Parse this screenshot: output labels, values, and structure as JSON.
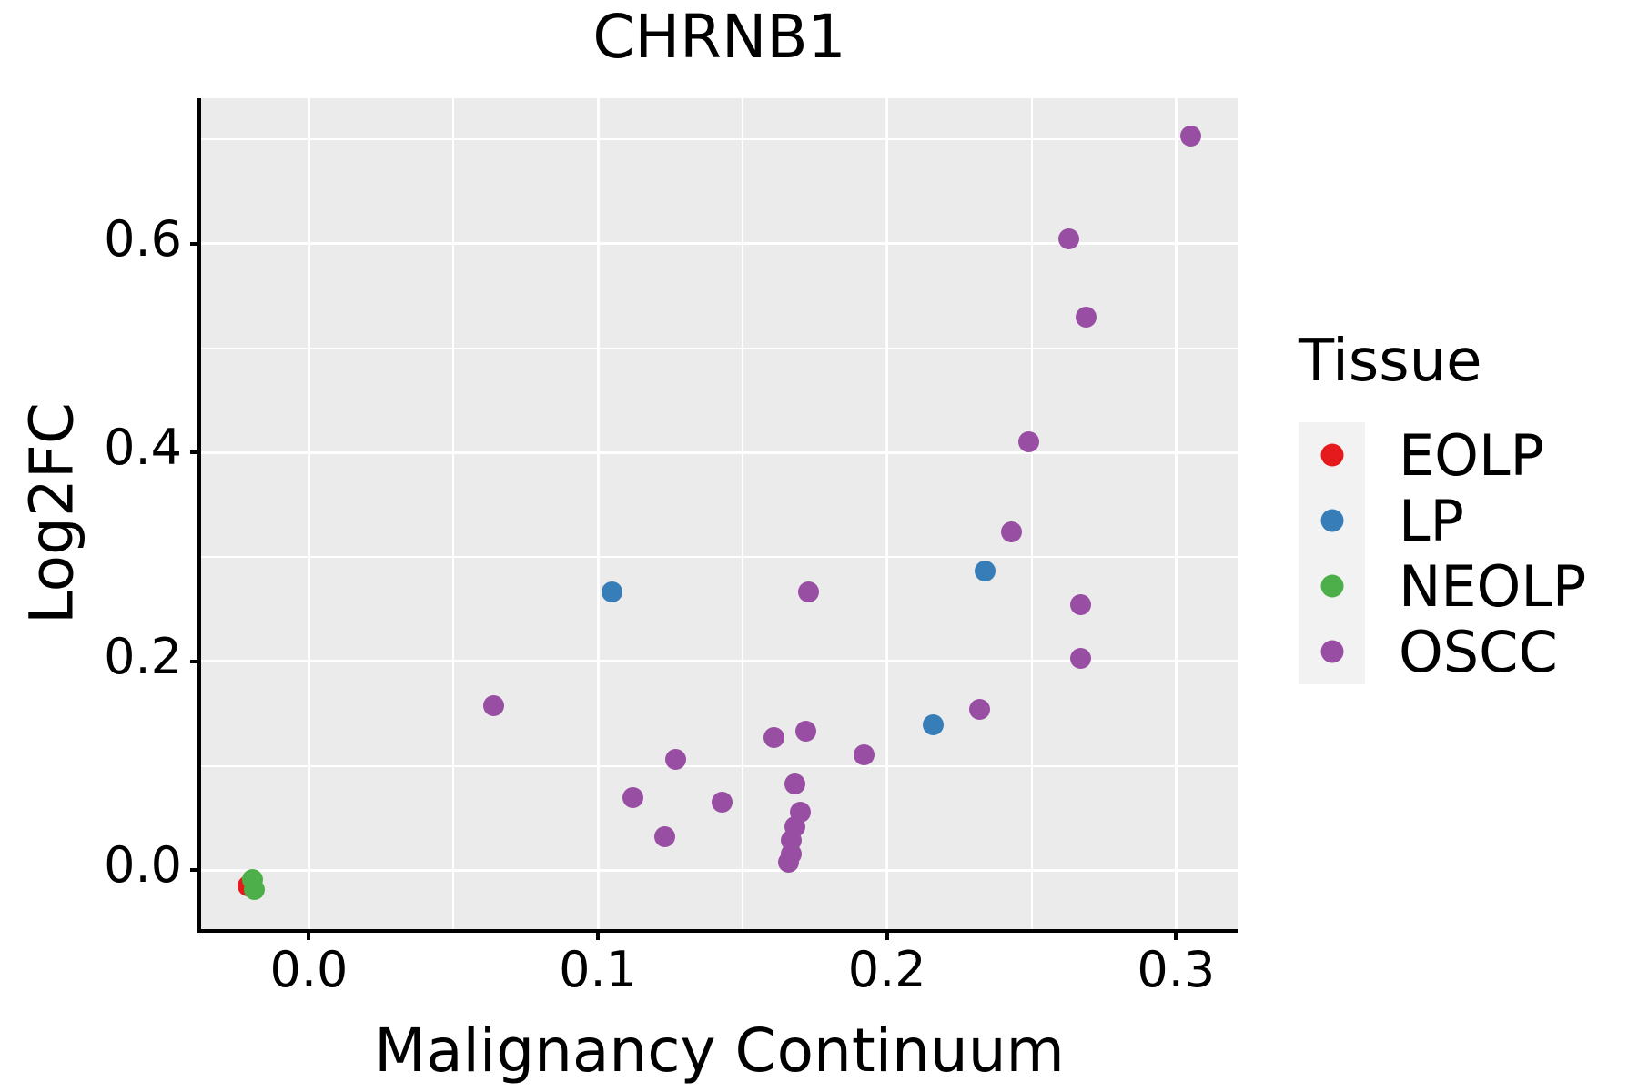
{
  "title": "CHRNB1",
  "axes": {
    "x": {
      "title": "Malignancy Continuum",
      "ticks": [
        0.0,
        0.1,
        0.2,
        0.3
      ],
      "tick_labels": [
        "0.0",
        "0.1",
        "0.2",
        "0.3"
      ],
      "minor_ticks": [
        0.05,
        0.15,
        0.25
      ],
      "limits": [
        -0.0373,
        0.3213
      ]
    },
    "y": {
      "title": "Log2FC",
      "ticks": [
        0.0,
        0.2,
        0.4,
        0.6
      ],
      "tick_labels": [
        "0.0",
        "0.2",
        "0.4",
        "0.6"
      ],
      "minor_ticks": [
        0.1,
        0.3,
        0.5,
        0.7
      ],
      "limits": [
        -0.0562,
        0.7392
      ]
    }
  },
  "legend": {
    "title": "Tissue",
    "entries": [
      {
        "label": "EOLP",
        "color": "#E41A1C"
      },
      {
        "label": "LP",
        "color": "#377EB8"
      },
      {
        "label": "NEOLP",
        "color": "#4DAF4A"
      },
      {
        "label": "OSCC",
        "color": "#984EA3"
      }
    ]
  },
  "colors": {
    "panel_background": "#EBEBEB",
    "gridline": "#FFFFFF",
    "axis_line": "#000000",
    "text": "#000000",
    "legend_key_background": "#F2F2F2"
  },
  "chart_data": {
    "type": "scatter",
    "title": "CHRNB1",
    "xlabel": "Malignancy Continuum",
    "ylabel": "Log2FC",
    "xlim": [
      -0.0373,
      0.3213
    ],
    "ylim": [
      -0.0562,
      0.7392
    ],
    "x_ticks": [
      0.0,
      0.1,
      0.2,
      0.3
    ],
    "y_ticks": [
      0.0,
      0.2,
      0.4,
      0.6
    ],
    "grid": "major-and-minor white on gray panel",
    "legend_position": "right",
    "legend_title": "Tissue",
    "series": [
      {
        "name": "EOLP",
        "color": "#E41A1C",
        "points": [
          [
            -0.021,
            -0.015
          ]
        ]
      },
      {
        "name": "LP",
        "color": "#377EB8",
        "points": [
          [
            0.105,
            0.267
          ],
          [
            0.216,
            0.139
          ],
          [
            0.234,
            0.287
          ]
        ]
      },
      {
        "name": "NEOLP",
        "color": "#4DAF4A",
        "points": [
          [
            -0.0195,
            -0.009
          ],
          [
            -0.019,
            -0.018
          ]
        ]
      },
      {
        "name": "OSCC",
        "color": "#984EA3",
        "points": [
          [
            0.064,
            0.158
          ],
          [
            0.112,
            0.07
          ],
          [
            0.123,
            0.032
          ],
          [
            0.127,
            0.106
          ],
          [
            0.143,
            0.065
          ],
          [
            0.161,
            0.127
          ],
          [
            0.172,
            0.133
          ],
          [
            0.173,
            0.267
          ],
          [
            0.168,
            0.083
          ],
          [
            0.17,
            0.056
          ],
          [
            0.168,
            0.042
          ],
          [
            0.167,
            0.029
          ],
          [
            0.167,
            0.016
          ],
          [
            0.166,
            0.008
          ],
          [
            0.192,
            0.111
          ],
          [
            0.232,
            0.154
          ],
          [
            0.243,
            0.324
          ],
          [
            0.249,
            0.41
          ],
          [
            0.263,
            0.605
          ],
          [
            0.267,
            0.254
          ],
          [
            0.267,
            0.203
          ],
          [
            0.269,
            0.53
          ],
          [
            0.305,
            0.703
          ]
        ]
      }
    ]
  }
}
